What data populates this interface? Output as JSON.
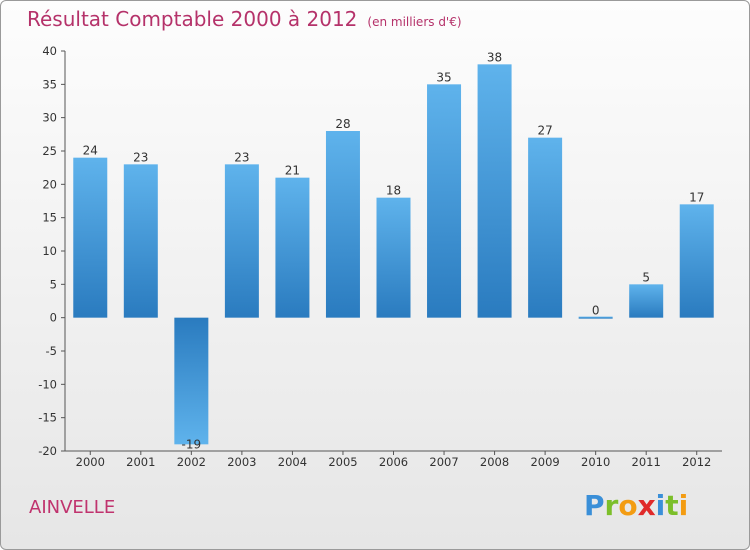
{
  "header": {
    "title": "Résultat Comptable 2000 à 2012",
    "subtitle": "(en milliers d'€)"
  },
  "commune": "AINVELLE",
  "logo": {
    "letters": [
      "P",
      "r",
      "o",
      "x",
      "i",
      "t",
      "i"
    ],
    "colors": [
      "#3a8fd8",
      "#7cbf2a",
      "#f39c12",
      "#e02a2a",
      "#3a8fd8",
      "#7cbf2a",
      "#f39c12"
    ]
  },
  "colors": {
    "bar_top": "#5fb3ec",
    "bar_bottom": "#2a7bbf",
    "axis": "#555555",
    "title": "#b5326a"
  },
  "chart_data": {
    "type": "bar",
    "title": "Résultat Comptable 2000 à 2012",
    "subtitle": "(en milliers d'€)",
    "xlabel": "",
    "ylabel": "",
    "categories": [
      "2000",
      "2001",
      "2002",
      "2003",
      "2004",
      "2005",
      "2006",
      "2007",
      "2008",
      "2009",
      "2010",
      "2011",
      "2012"
    ],
    "values": [
      24,
      23,
      -19,
      23,
      21,
      28,
      18,
      35,
      38,
      27,
      0,
      5,
      17
    ],
    "ylim": [
      -20,
      40
    ],
    "yticks": [
      40,
      35,
      30,
      25,
      20,
      15,
      10,
      5,
      0,
      -5,
      -10,
      -15,
      -20
    ],
    "grid": false,
    "legend": "none"
  }
}
